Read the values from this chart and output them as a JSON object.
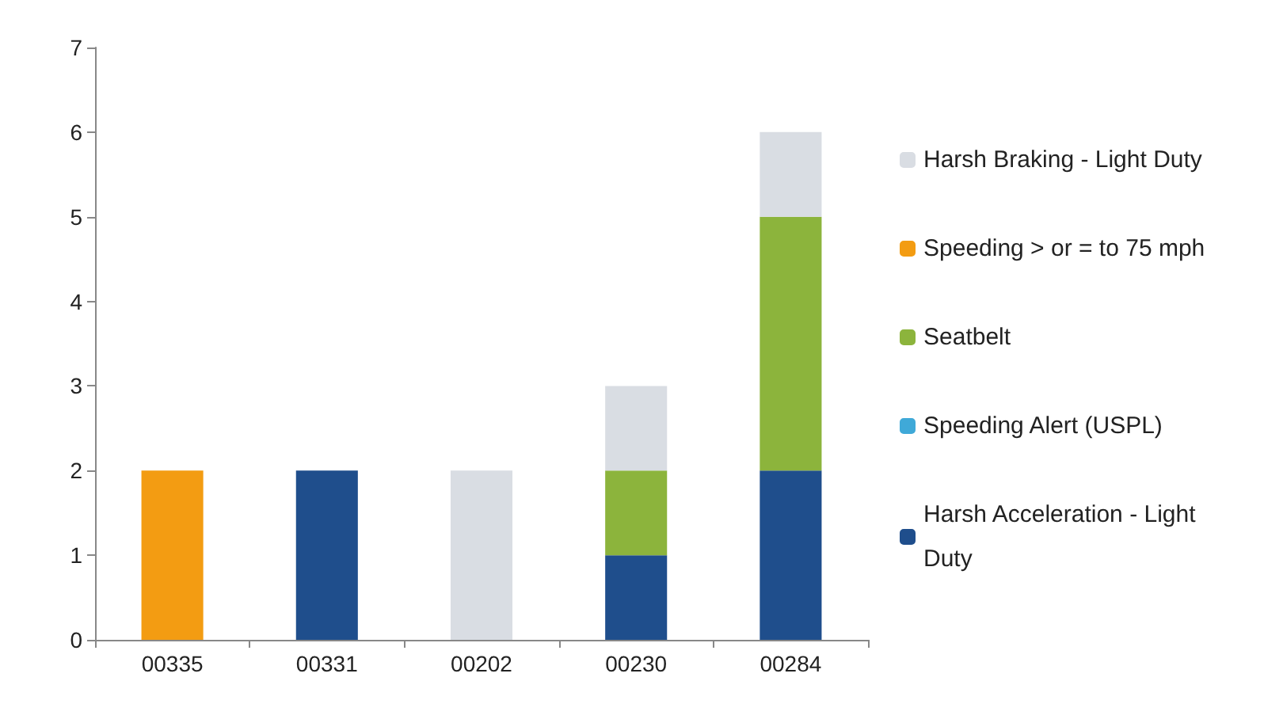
{
  "chart_data": {
    "type": "bar",
    "stacked": true,
    "categories": [
      "00335",
      "00331",
      "00202",
      "00230",
      "00284"
    ],
    "series": [
      {
        "name": "Harsh Acceleration - Light Duty",
        "color": "#1f4e8c",
        "values": [
          0,
          2,
          0,
          1,
          2
        ]
      },
      {
        "name": "Speeding Alert (USPL)",
        "color": "#3fa9d8",
        "values": [
          0,
          0,
          0,
          0,
          0
        ]
      },
      {
        "name": "Seatbelt",
        "color": "#8cb43c",
        "values": [
          0,
          0,
          0,
          1,
          3
        ]
      },
      {
        "name": "Speeding > or = to 75 mph",
        "color": "#f39c12",
        "values": [
          2,
          0,
          0,
          0,
          0
        ]
      },
      {
        "name": "Harsh Braking - Light Duty",
        "color": "#d9dde3",
        "values": [
          0,
          0,
          2,
          1,
          1
        ]
      }
    ],
    "ylim": [
      0,
      7
    ],
    "yticks": [
      0,
      1,
      2,
      3,
      4,
      5,
      6,
      7
    ],
    "grid": false,
    "legend": "right"
  }
}
